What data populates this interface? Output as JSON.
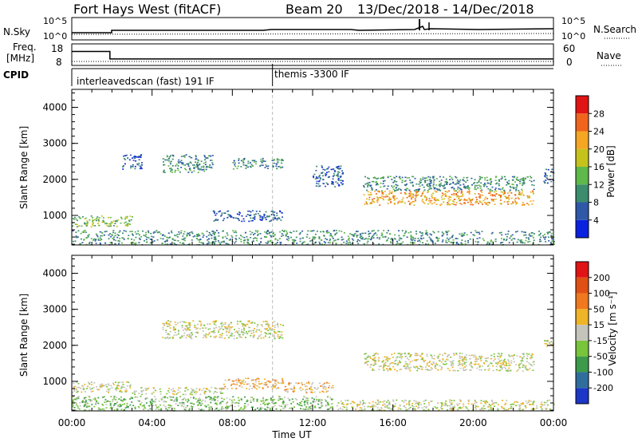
{
  "header": {
    "station": "Fort Hays West (fitACF)",
    "beam": "Beam 20",
    "dates": "13/Dec/2018 - 14/Dec/2018"
  },
  "noise_panel": {
    "left_label": "N.Sky",
    "right_label": "N.Search",
    "left_ticks": [
      "10^5",
      "10^0"
    ],
    "right_ticks": [
      "10^5",
      "10^0"
    ]
  },
  "freq_panel": {
    "left_label_1": "Freq.",
    "left_label_2": "[MHz]",
    "right_label": "Nave",
    "left_ticks": [
      "18",
      "8"
    ],
    "right_ticks": [
      "60",
      "0"
    ],
    "freq_steps": [
      [
        0,
        14.5
      ],
      [
        1.9,
        11.0
      ]
    ],
    "nave": 11
  },
  "cpid": {
    "label": "CPID",
    "mode_1": "interleavedscan (fast) 191 IF",
    "mode_2": "themis -3300 IF",
    "switch_hour": 10.0
  },
  "chart_data": [
    {
      "type": "heatmap",
      "name": "Power",
      "ylabel": "Slant Range [km]",
      "xlabel": "Time UT",
      "xlim_hours": [
        0,
        24
      ],
      "ylim": [
        180,
        4500
      ],
      "x_tick_labels": [
        "00:00",
        "04:00",
        "08:00",
        "12:00",
        "16:00",
        "20:00",
        "00:00"
      ],
      "y_ticks": [
        1000,
        2000,
        3000,
        4000
      ],
      "colorbar_label": "Power [dB]",
      "colorbar_ticks": [
        "4",
        "8",
        "12",
        "16",
        "20",
        "24",
        "28"
      ],
      "colorbar_colors": [
        "#0a22e0",
        "#2f58a8",
        "#3c8c6e",
        "#5fb84a",
        "#c6c21c",
        "#f5a623",
        "#f0641e",
        "#e01414"
      ],
      "regions": [
        {
          "t0": 0.0,
          "t1": 3.0,
          "r0": 700,
          "r1": 1000,
          "level": 3
        },
        {
          "t0": 2.5,
          "t1": 3.5,
          "r0": 2300,
          "r1": 2700,
          "level": 1
        },
        {
          "t0": 4.5,
          "t1": 7.0,
          "r0": 2200,
          "r1": 2700,
          "level": 2
        },
        {
          "t0": 7.0,
          "t1": 10.5,
          "r0": 850,
          "r1": 1150,
          "level": 1
        },
        {
          "t0": 8.0,
          "t1": 10.5,
          "r0": 2300,
          "r1": 2600,
          "level": 2
        },
        {
          "t0": 12.0,
          "t1": 13.5,
          "r0": 1800,
          "r1": 2400,
          "level": 1
        },
        {
          "t0": 14.5,
          "t1": 23.0,
          "r0": 1300,
          "r1": 1700,
          "level": 5
        },
        {
          "t0": 14.5,
          "t1": 23.0,
          "r0": 1700,
          "r1": 2100,
          "level": 2
        },
        {
          "t0": 23.5,
          "t1": 24.0,
          "r0": 1900,
          "r1": 2300,
          "level": 1
        },
        {
          "t0": 0.0,
          "t1": 24.0,
          "r0": 200,
          "r1": 600,
          "level": 2
        }
      ]
    },
    {
      "type": "heatmap",
      "name": "Velocity",
      "ylabel": "Slant Range [km]",
      "xlabel": "Time UT",
      "xlim_hours": [
        0,
        24
      ],
      "ylim": [
        180,
        4500
      ],
      "x_tick_labels": [
        "00:00",
        "04:00",
        "08:00",
        "12:00",
        "16:00",
        "20:00",
        "00:00"
      ],
      "y_ticks": [
        1000,
        2000,
        3000,
        4000
      ],
      "colorbar_label": "Velocity [m s⁻¹]",
      "colorbar_ticks": [
        "200",
        "100",
        "50",
        "15",
        "-15",
        "-50",
        "-100",
        "-200"
      ],
      "colorbar_colors": [
        "#1c36c8",
        "#2f6e9c",
        "#3c9a4a",
        "#78c43a",
        "#c4c4bc",
        "#f0b428",
        "#f0781e",
        "#e05014",
        "#e01414"
      ],
      "regions": [
        {
          "t0": 0.0,
          "t1": 3.0,
          "r0": 700,
          "r1": 1000,
          "level": 4
        },
        {
          "t0": 3.0,
          "t1": 7.5,
          "r0": 650,
          "r1": 850,
          "level": 4
        },
        {
          "t0": 7.5,
          "t1": 10.5,
          "r0": 800,
          "r1": 1100,
          "level": 5
        },
        {
          "t0": 10.5,
          "t1": 13.0,
          "r0": 700,
          "r1": 1000,
          "level": 5
        },
        {
          "t0": 4.5,
          "t1": 10.5,
          "r0": 2200,
          "r1": 2700,
          "level": 4
        },
        {
          "t0": 14.5,
          "t1": 23.0,
          "r0": 1300,
          "r1": 1800,
          "level": 4
        },
        {
          "t0": 23.5,
          "t1": 24.0,
          "r0": 1900,
          "r1": 2200,
          "level": 4
        },
        {
          "t0": 0.0,
          "t1": 13.0,
          "r0": 200,
          "r1": 600,
          "level": 3
        },
        {
          "t0": 13.0,
          "t1": 24.0,
          "r0": 200,
          "r1": 500,
          "level": 4
        }
      ]
    }
  ]
}
